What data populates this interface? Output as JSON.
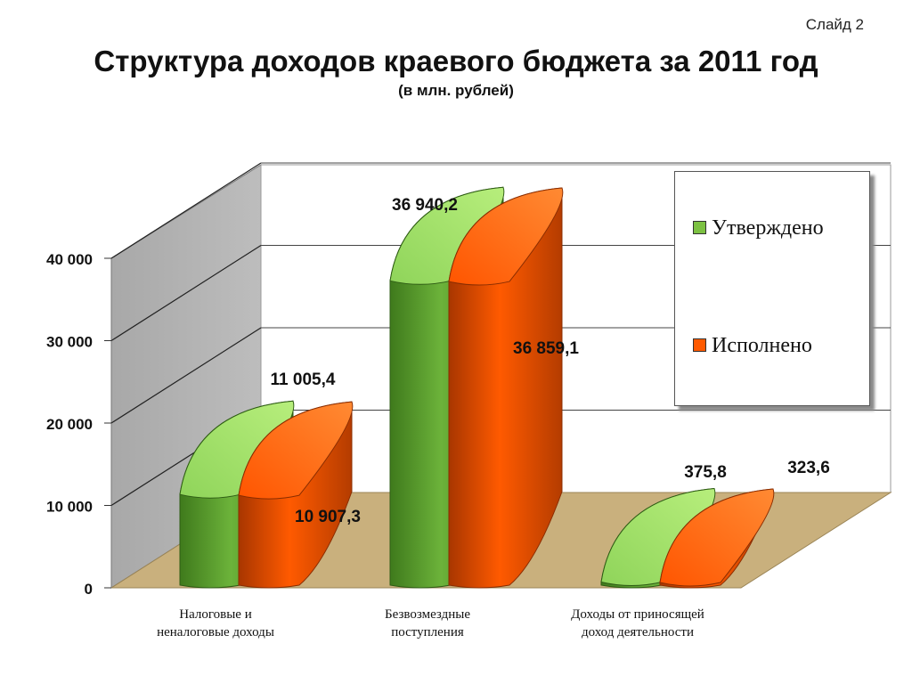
{
  "slide_label": "Слайд 2",
  "title": "Структура доходов краевого бюджета за 2011 год",
  "subtitle": "(в млн. рублей)",
  "colors": {
    "approved": "#6cb33a",
    "executed": "#ff5a00"
  },
  "chart_data": {
    "type": "bar",
    "ylim": [
      0,
      40000
    ],
    "yticks": [
      0,
      10000,
      20000,
      30000,
      40000
    ],
    "ytick_labels": [
      "0",
      "10 000",
      "20 000",
      "30 000",
      "40 000"
    ],
    "grid": true,
    "legend_position": "top-right",
    "categories": [
      [
        "Налоговые и",
        "неналоговые доходы"
      ],
      [
        "Безвозмездные",
        "поступления"
      ],
      [
        "Доходы от приносящей",
        "доход деятельности"
      ]
    ],
    "series": [
      {
        "name": "Утверждено",
        "values": [
          11005.4,
          36940.2,
          375.8
        ],
        "labels": [
          "11 005,4",
          "36 940,2",
          "375,8"
        ]
      },
      {
        "name": "Исполнено",
        "values": [
          10907.3,
          36859.1,
          323.6
        ],
        "labels": [
          "10 907,3",
          "36 859,1",
          "323,6"
        ]
      }
    ]
  }
}
